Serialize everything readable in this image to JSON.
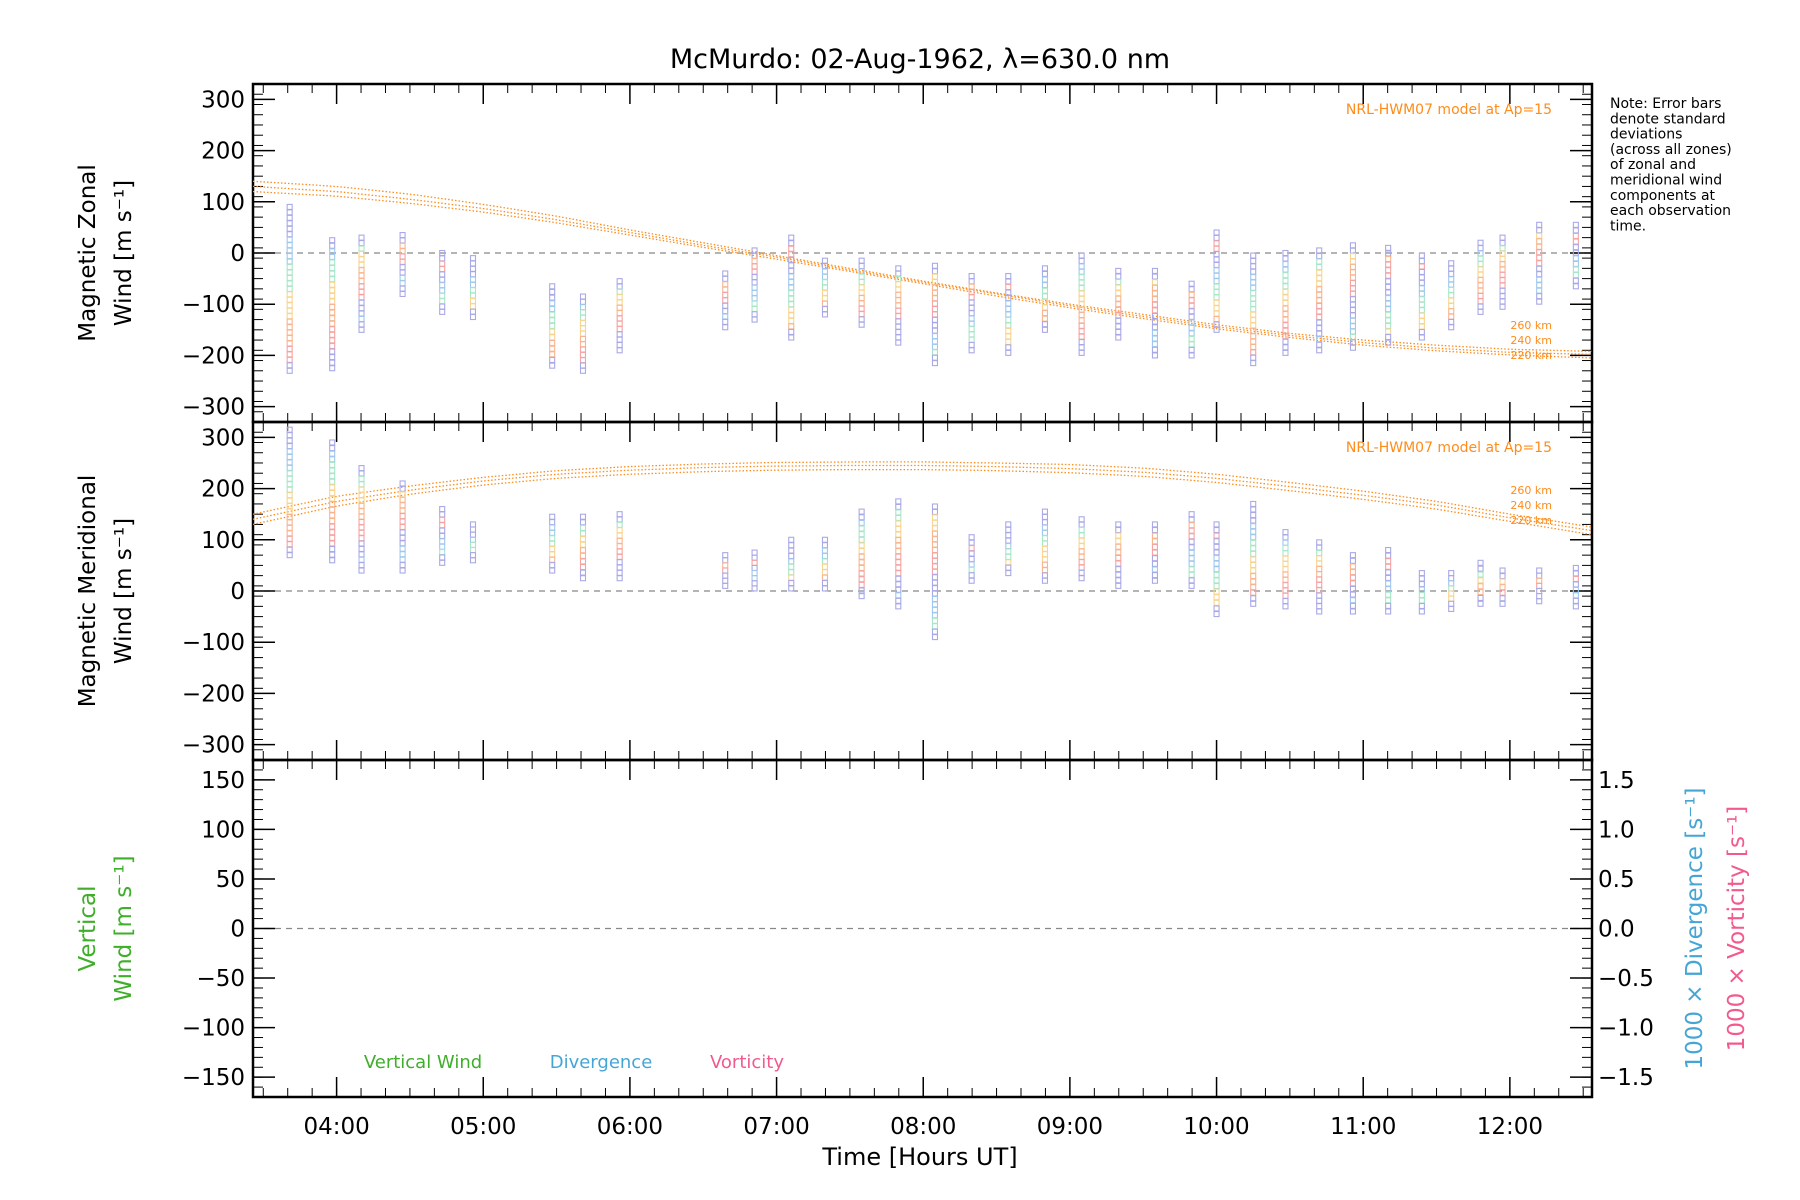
{
  "title": "McMurdo: 02-Aug-1962, λ=630.0 nm",
  "note_lines": [
    "Note: Error bars",
    "denote standard",
    "deviations",
    "(across all zones)",
    "of zonal and",
    "meridional wind",
    "components at",
    "each observation",
    "time."
  ],
  "colors": {
    "model": "#ff8c1a",
    "vertical": "#3fae2a",
    "divergence": "#45a6d6",
    "vorticity": "#f25a8c",
    "zero_line": "#888888"
  },
  "chart_data": [
    {
      "type": "scatter",
      "panel": "zonal",
      "ylabel_lines": [
        "Magnetic Zonal",
        "Wind [m s⁻¹]"
      ],
      "ylim": [
        -330,
        330
      ],
      "yticks": [
        -300,
        -200,
        -100,
        0,
        100,
        200,
        300
      ],
      "model_label": "NRL-HWM07 model at Ap=15",
      "model_altitudes": [
        "260 km",
        "240 km",
        "220 km"
      ],
      "model_curves": [
        {
          "altitude": "260 km",
          "x": [
            3.43,
            4.0,
            4.5,
            5.0,
            5.5,
            6.0,
            6.5,
            7.0,
            7.5,
            8.0,
            8.5,
            9.0,
            9.5,
            10.0,
            10.5,
            11.0,
            11.5,
            12.0,
            12.56
          ],
          "y": [
            140,
            130,
            115,
            95,
            72,
            45,
            20,
            -5,
            -30,
            -55,
            -78,
            -100,
            -120,
            -140,
            -157,
            -170,
            -180,
            -188,
            -192
          ]
        },
        {
          "altitude": "240 km",
          "x": [
            3.43,
            4.0,
            4.5,
            5.0,
            5.5,
            6.0,
            6.5,
            7.0,
            7.5,
            8.0,
            8.5,
            9.0,
            9.5,
            10.0,
            10.5,
            11.0,
            11.5,
            12.0,
            12.56
          ],
          "y": [
            130,
            120,
            105,
            87,
            65,
            40,
            15,
            -8,
            -33,
            -57,
            -80,
            -103,
            -124,
            -144,
            -161,
            -175,
            -186,
            -194,
            -198
          ]
        },
        {
          "altitude": "220 km",
          "x": [
            3.43,
            4.0,
            4.5,
            5.0,
            5.5,
            6.0,
            6.5,
            7.0,
            7.5,
            8.0,
            8.5,
            9.0,
            9.5,
            10.0,
            10.5,
            11.0,
            11.5,
            12.0,
            12.56
          ],
          "y": [
            120,
            111,
            97,
            80,
            59,
            35,
            11,
            -12,
            -36,
            -60,
            -84,
            -107,
            -128,
            -148,
            -165,
            -180,
            -191,
            -199,
            -205
          ]
        }
      ],
      "observations": [
        {
          "t": 3.68,
          "min": -230,
          "max": 90
        },
        {
          "t": 3.97,
          "min": -225,
          "max": 25
        },
        {
          "t": 4.17,
          "min": -150,
          "max": 30
        },
        {
          "t": 4.45,
          "min": -80,
          "max": 35
        },
        {
          "t": 4.72,
          "min": -115,
          "max": 0
        },
        {
          "t": 4.93,
          "min": -125,
          "max": -10
        },
        {
          "t": 5.47,
          "min": -220,
          "max": -65
        },
        {
          "t": 5.68,
          "min": -230,
          "max": -85
        },
        {
          "t": 5.93,
          "min": -190,
          "max": -55
        },
        {
          "t": 6.65,
          "min": -145,
          "max": -40
        },
        {
          "t": 6.85,
          "min": -130,
          "max": 5
        },
        {
          "t": 7.1,
          "min": -165,
          "max": 30
        },
        {
          "t": 7.33,
          "min": -120,
          "max": -15
        },
        {
          "t": 7.58,
          "min": -140,
          "max": -15
        },
        {
          "t": 7.83,
          "min": -175,
          "max": -30
        },
        {
          "t": 8.08,
          "min": -215,
          "max": -25
        },
        {
          "t": 8.33,
          "min": -190,
          "max": -45
        },
        {
          "t": 8.58,
          "min": -195,
          "max": -45
        },
        {
          "t": 8.83,
          "min": -150,
          "max": -30
        },
        {
          "t": 9.08,
          "min": -195,
          "max": -5
        },
        {
          "t": 9.33,
          "min": -165,
          "max": -35
        },
        {
          "t": 9.58,
          "min": -200,
          "max": -35
        },
        {
          "t": 9.83,
          "min": -200,
          "max": -60
        },
        {
          "t": 10.0,
          "min": -150,
          "max": 40
        },
        {
          "t": 10.25,
          "min": -215,
          "max": -5
        },
        {
          "t": 10.47,
          "min": -195,
          "max": 0
        },
        {
          "t": 10.7,
          "min": -190,
          "max": 5
        },
        {
          "t": 10.93,
          "min": -185,
          "max": 15
        },
        {
          "t": 11.17,
          "min": -175,
          "max": 10
        },
        {
          "t": 11.4,
          "min": -165,
          "max": -5
        },
        {
          "t": 11.6,
          "min": -145,
          "max": -20
        },
        {
          "t": 11.8,
          "min": -115,
          "max": 20
        },
        {
          "t": 11.95,
          "min": -105,
          "max": 30
        },
        {
          "t": 12.2,
          "min": -95,
          "max": 55
        },
        {
          "t": 12.45,
          "min": -65,
          "max": 55
        }
      ]
    },
    {
      "type": "scatter",
      "panel": "meridional",
      "ylabel_lines": [
        "Magnetic Meridional",
        "Wind [m s⁻¹]"
      ],
      "ylim": [
        -330,
        330
      ],
      "yticks": [
        -300,
        -200,
        -100,
        0,
        100,
        200,
        300
      ],
      "model_label": "NRL-HWM07 model at Ap=15",
      "model_altitudes": [
        "260 km",
        "240 km",
        "220 km"
      ],
      "model_curves": [
        {
          "altitude": "260 km",
          "x": [
            3.43,
            4.0,
            4.5,
            5.0,
            5.5,
            6.0,
            6.5,
            7.0,
            7.5,
            8.0,
            8.5,
            9.0,
            9.5,
            10.0,
            10.5,
            11.0,
            11.5,
            12.0,
            12.56
          ],
          "y": [
            150,
            185,
            205,
            222,
            235,
            243,
            248,
            251,
            252,
            252,
            250,
            247,
            240,
            228,
            212,
            195,
            175,
            150,
            125
          ]
        },
        {
          "altitude": "240 km",
          "x": [
            3.43,
            4.0,
            4.5,
            5.0,
            5.5,
            6.0,
            6.5,
            7.0,
            7.5,
            8.0,
            8.5,
            9.0,
            9.5,
            10.0,
            10.5,
            11.0,
            11.5,
            12.0,
            12.56
          ],
          "y": [
            140,
            175,
            197,
            215,
            228,
            236,
            241,
            244,
            245,
            245,
            243,
            239,
            232,
            220,
            204,
            187,
            168,
            143,
            118
          ]
        },
        {
          "altitude": "220 km",
          "x": [
            3.43,
            4.0,
            4.5,
            5.0,
            5.5,
            6.0,
            6.5,
            7.0,
            7.5,
            8.0,
            8.5,
            9.0,
            9.5,
            10.0,
            10.5,
            11.0,
            11.5,
            12.0,
            12.56
          ],
          "y": [
            130,
            166,
            189,
            207,
            220,
            228,
            233,
            236,
            237,
            237,
            235,
            231,
            224,
            212,
            196,
            179,
            160,
            136,
            110
          ]
        }
      ],
      "observations": [
        {
          "t": 3.68,
          "min": 70,
          "max": 315
        },
        {
          "t": 3.97,
          "min": 60,
          "max": 290
        },
        {
          "t": 4.17,
          "min": 40,
          "max": 240
        },
        {
          "t": 4.45,
          "min": 40,
          "max": 210
        },
        {
          "t": 4.72,
          "min": 55,
          "max": 160
        },
        {
          "t": 4.93,
          "min": 60,
          "max": 130
        },
        {
          "t": 5.47,
          "min": 40,
          "max": 145
        },
        {
          "t": 5.68,
          "min": 25,
          "max": 145
        },
        {
          "t": 5.93,
          "min": 25,
          "max": 150
        },
        {
          "t": 6.65,
          "min": 10,
          "max": 70
        },
        {
          "t": 6.85,
          "min": 5,
          "max": 75
        },
        {
          "t": 7.1,
          "min": 5,
          "max": 100
        },
        {
          "t": 7.33,
          "min": 5,
          "max": 100
        },
        {
          "t": 7.58,
          "min": -10,
          "max": 155
        },
        {
          "t": 7.83,
          "min": -30,
          "max": 175
        },
        {
          "t": 8.08,
          "min": -90,
          "max": 165
        },
        {
          "t": 8.33,
          "min": 20,
          "max": 105
        },
        {
          "t": 8.58,
          "min": 35,
          "max": 130
        },
        {
          "t": 8.83,
          "min": 20,
          "max": 155
        },
        {
          "t": 9.08,
          "min": 25,
          "max": 140
        },
        {
          "t": 9.33,
          "min": 10,
          "max": 130
        },
        {
          "t": 9.58,
          "min": 20,
          "max": 130
        },
        {
          "t": 9.83,
          "min": 10,
          "max": 150
        },
        {
          "t": 10.0,
          "min": -45,
          "max": 130
        },
        {
          "t": 10.25,
          "min": -25,
          "max": 170
        },
        {
          "t": 10.47,
          "min": -30,
          "max": 115
        },
        {
          "t": 10.7,
          "min": -40,
          "max": 95
        },
        {
          "t": 10.93,
          "min": -40,
          "max": 70
        },
        {
          "t": 11.17,
          "min": -40,
          "max": 80
        },
        {
          "t": 11.4,
          "min": -40,
          "max": 35
        },
        {
          "t": 11.6,
          "min": -35,
          "max": 35
        },
        {
          "t": 11.8,
          "min": -25,
          "max": 55
        },
        {
          "t": 11.95,
          "min": -25,
          "max": 40
        },
        {
          "t": 12.2,
          "min": -20,
          "max": 40
        },
        {
          "t": 12.45,
          "min": -30,
          "max": 45
        }
      ]
    },
    {
      "type": "line",
      "panel": "vertical",
      "ylabel_left_lines": [
        "Vertical",
        "Wind [m s⁻¹]"
      ],
      "ylabel_right_1": "1000 × Divergence [s⁻¹]",
      "ylabel_right_2": "1000 × Vorticity [s⁻¹]",
      "ylim": [
        -170,
        170
      ],
      "yticks": [
        -150,
        -100,
        -50,
        0,
        50,
        100,
        150
      ],
      "ylim_right": [
        -1.7,
        1.7
      ],
      "yticks_right": [
        -1.5,
        -1.0,
        -0.5,
        0.0,
        0.5,
        1.0,
        1.5
      ],
      "yticklabels_right": [
        "−1.5",
        "−1.0",
        "−0.5",
        "0.0",
        "0.5",
        "1.0",
        "1.5"
      ],
      "legend": [
        "Vertical Wind",
        "Divergence",
        "Vorticity"
      ],
      "series": []
    }
  ],
  "x_axis": {
    "xlim": [
      3.43,
      12.56
    ],
    "ticks": [
      4,
      5,
      6,
      7,
      8,
      9,
      10,
      11,
      12
    ],
    "ticklabels": [
      "04:00",
      "05:00",
      "06:00",
      "07:00",
      "08:00",
      "09:00",
      "10:00",
      "11:00",
      "12:00"
    ],
    "xlabel": "Time [Hours UT]"
  }
}
